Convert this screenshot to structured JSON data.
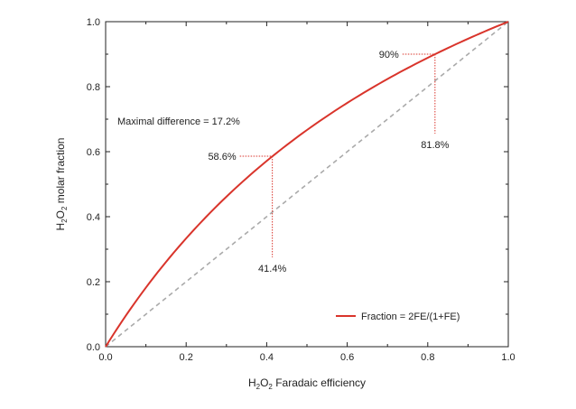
{
  "chart_data": {
    "type": "line",
    "xlabel": {
      "main": "H",
      "sub1": "2",
      "mid": "O",
      "sub2": "2",
      "rest": " Faradaic efficiency"
    },
    "ylabel": {
      "main": "H",
      "sub1": "2",
      "mid": "O",
      "sub2": "2",
      "rest": " molar fraction"
    },
    "xlim": [
      0,
      1
    ],
    "ylim": [
      0,
      1
    ],
    "x_ticks": [
      "0.0",
      "0.2",
      "0.4",
      "0.6",
      "0.8",
      "1.0"
    ],
    "y_ticks": [
      "0.0",
      "0.2",
      "0.4",
      "0.6",
      "0.8",
      "1.0"
    ],
    "series": [
      {
        "name": "Fraction = 2FE/(1+FE)",
        "color": "#d9342b",
        "formula": "2x/(1+x)"
      }
    ],
    "reference_line": {
      "style": "dashed",
      "color": "#aaaaaa",
      "points": [
        [
          0,
          0
        ],
        [
          1,
          1
        ]
      ]
    },
    "annotation_text": "Maximal difference = 17.2%",
    "markers": [
      {
        "x": 0.414,
        "y": 0.586,
        "y_label": "58.6%",
        "x_label": "41.4%"
      },
      {
        "x": 0.818,
        "y": 0.9,
        "y_label": "90%",
        "x_label": "81.8%"
      }
    ],
    "legend": {
      "position": "bottom-right"
    },
    "colors": {
      "marker_line": "#d9342b",
      "curve": "#d9342b",
      "dashed": "#aaaaaa",
      "axis": "#222222"
    }
  }
}
